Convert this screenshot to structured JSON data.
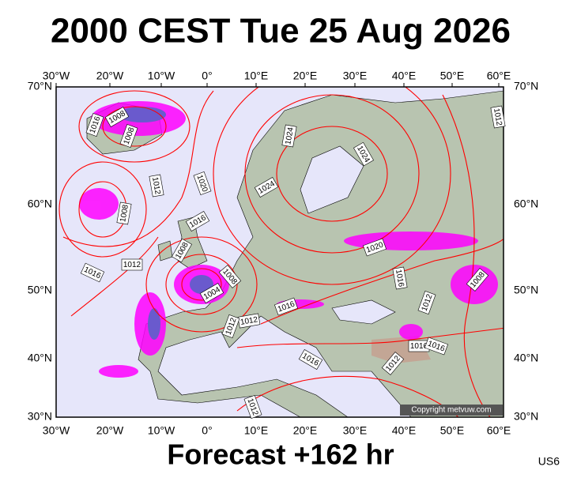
{
  "header": {
    "title": "2000 CEST Tue 25 Aug 2026"
  },
  "axes": {
    "longitudes": [
      "30°W",
      "20°W",
      "10°W",
      "0°",
      "10°E",
      "20°E",
      "30°E",
      "40°E",
      "50°E",
      "60°E"
    ],
    "latitudes": [
      "70°N",
      "60°N",
      "50°N",
      "40°N",
      "30°N"
    ]
  },
  "isobars": [
    "1016",
    "1008",
    "1008",
    "1012",
    "1020",
    "1024",
    "1024",
    "1024",
    "1012",
    "1008",
    "1016",
    "1008",
    "1012",
    "1016",
    "1004",
    "1008",
    "1020",
    "1016",
    "1008",
    "1012",
    "1016",
    "1012",
    "1012",
    "1016",
    "1012",
    "1016",
    "1016",
    "1012"
  ],
  "footer": {
    "forecast": "Forecast +162 hr",
    "code": "US6"
  },
  "copyright": "Copyright metvuw.com"
}
